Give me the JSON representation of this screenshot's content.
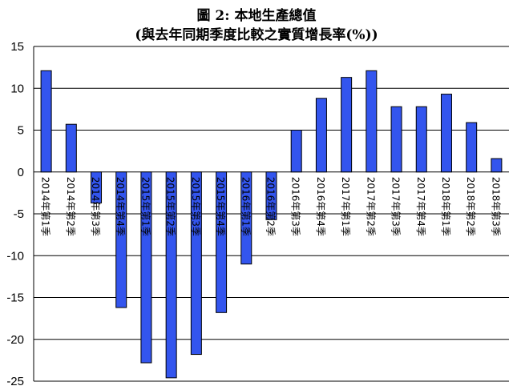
{
  "chart_data": {
    "type": "bar",
    "title": "圖 2: 本地生產總值",
    "subtitle": "(與去年同期季度比較之實質增長率(%))",
    "xlabel": "",
    "ylabel": "",
    "ylim": [
      -25,
      15
    ],
    "yticks": [
      15,
      10,
      5,
      0,
      -5,
      -10,
      -15,
      -20,
      -25
    ],
    "grid": true,
    "legend": "none",
    "bar_color": "#3355ee",
    "bar_edge_color": "#000000",
    "categories": [
      "2014年第1季",
      "2014年第2季",
      "2014年第3季",
      "2014年第4季",
      "2015年第1季",
      "2015年第2季",
      "2015年第3季",
      "2015年第4季",
      "2016年第1季",
      "2016年第2季",
      "2016年第3季",
      "2016年第4季",
      "2017年第1季",
      "2017年第2季",
      "2017年第3季",
      "2017年第4季",
      "2018年第1季",
      "2018年第2季",
      "2018年第3季"
    ],
    "values": [
      12.1,
      5.7,
      -3.7,
      -16.2,
      -22.8,
      -24.6,
      -21.8,
      -16.8,
      -11.0,
      -5.7,
      5.0,
      8.8,
      11.3,
      12.1,
      7.8,
      7.8,
      9.3,
      5.9,
      1.6
    ]
  }
}
